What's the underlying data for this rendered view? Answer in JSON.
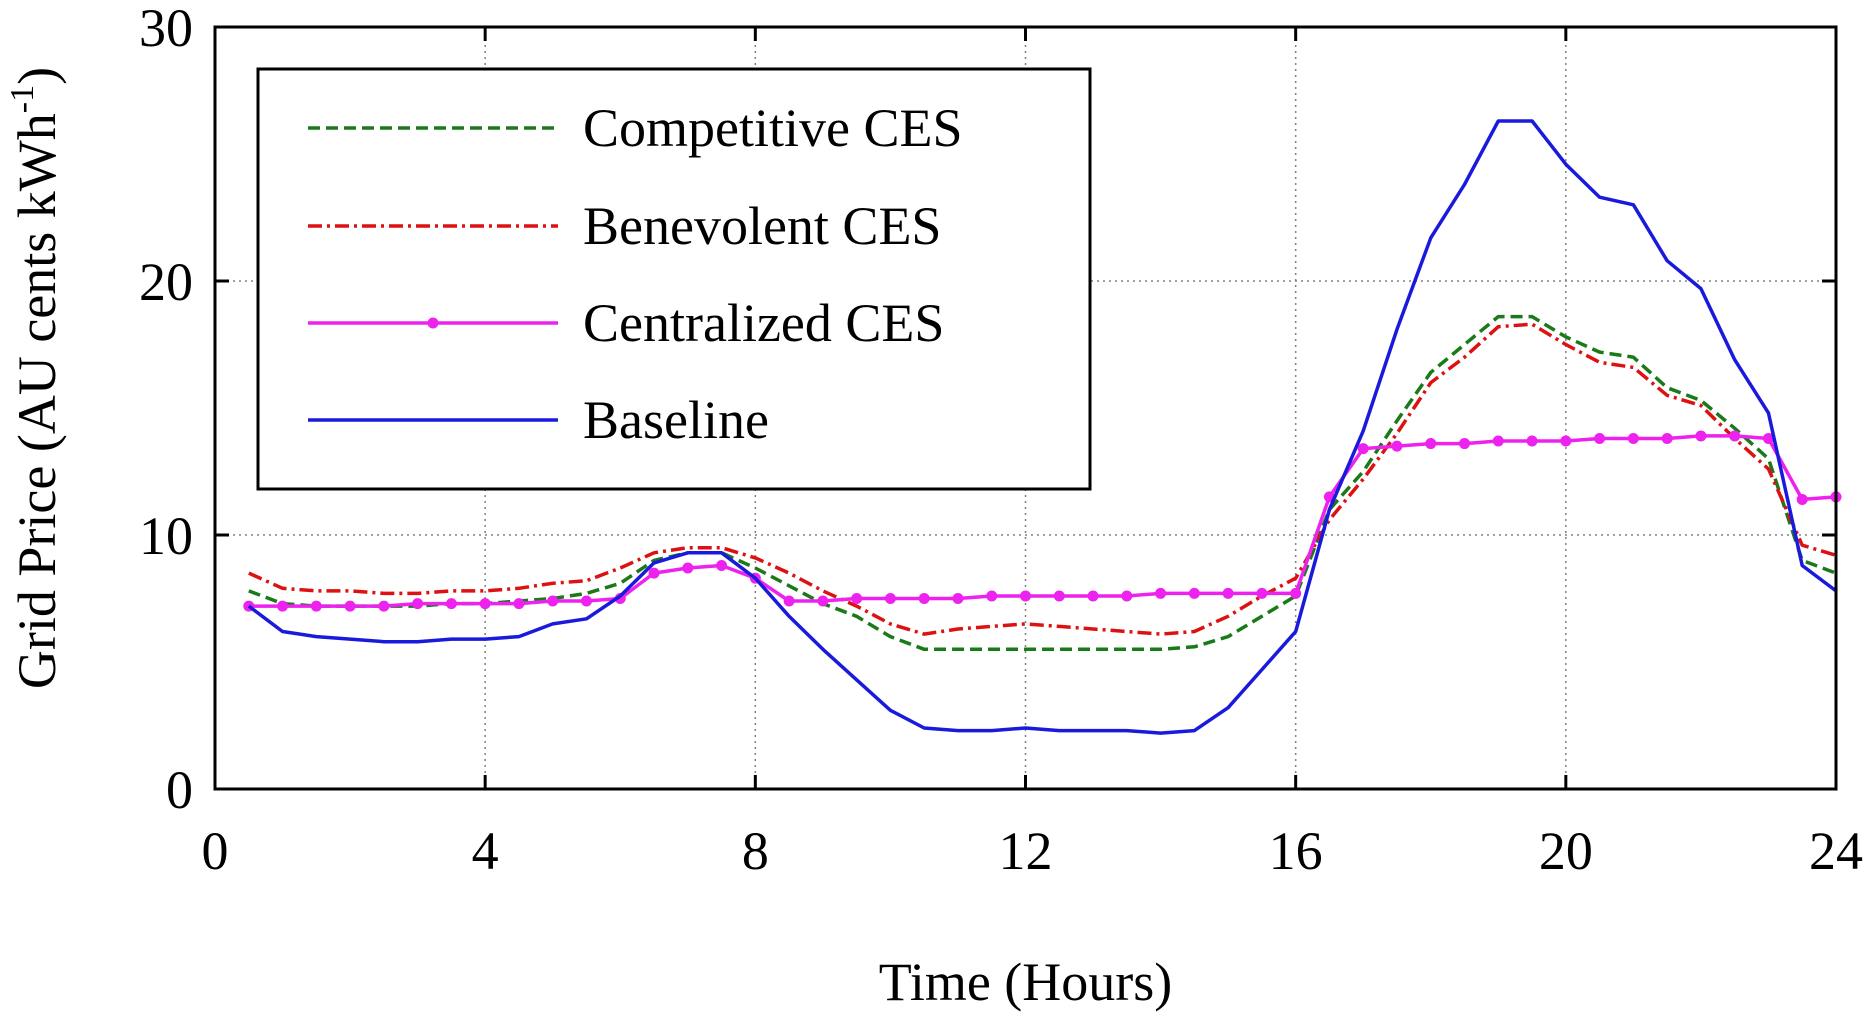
{
  "chart_data": {
    "type": "line",
    "title": "",
    "xlabel": "Time (Hours)",
    "ylabel": "Grid Price (AU cents kWh",
    "ylabel_superscript": "-1",
    "ylabel_suffix": ")",
    "xlim": [
      0,
      24
    ],
    "ylim": [
      0,
      30
    ],
    "xticks": [
      0,
      4,
      8,
      12,
      16,
      20,
      24
    ],
    "yticks": [
      0,
      10,
      20,
      30
    ],
    "xtick_labels": [
      "0",
      "4",
      "8",
      "12",
      "16",
      "20",
      "24"
    ],
    "ytick_labels": [
      "0",
      "10",
      "20",
      "30"
    ],
    "grid": true,
    "legend_position": "top-left",
    "x": [
      0.5,
      1,
      1.5,
      2,
      2.5,
      3,
      3.5,
      4,
      4.5,
      5,
      5.5,
      6,
      6.5,
      7,
      7.5,
      8,
      8.5,
      9,
      9.5,
      10,
      10.5,
      11,
      11.5,
      12,
      12.5,
      13,
      13.5,
      14,
      14.5,
      15,
      15.5,
      16,
      16.5,
      17,
      17.5,
      18,
      18.5,
      19,
      19.5,
      20,
      20.5,
      21,
      21.5,
      22,
      22.5,
      23,
      23.5,
      24
    ],
    "series": [
      {
        "name": "Competitive CES",
        "color": "#1a7a1a",
        "style": "dashed",
        "values": [
          7.8,
          7.3,
          7.2,
          7.2,
          7.2,
          7.2,
          7.3,
          7.3,
          7.4,
          7.5,
          7.7,
          8.1,
          9.0,
          9.3,
          9.3,
          8.7,
          8.0,
          7.3,
          6.8,
          6.0,
          5.5,
          5.5,
          5.5,
          5.5,
          5.5,
          5.5,
          5.5,
          5.5,
          5.6,
          6.0,
          6.8,
          7.6,
          11.0,
          12.5,
          14.5,
          16.4,
          17.5,
          18.6,
          18.6,
          17.8,
          17.2,
          17.0,
          15.8,
          15.3,
          14.2,
          13.0,
          9.0,
          8.5
        ]
      },
      {
        "name": "Benevolent CES",
        "color": "#dd1111",
        "style": "dashdot",
        "values": [
          8.5,
          7.9,
          7.8,
          7.8,
          7.7,
          7.7,
          7.8,
          7.8,
          7.9,
          8.1,
          8.2,
          8.7,
          9.3,
          9.5,
          9.5,
          9.1,
          8.5,
          7.8,
          7.2,
          6.5,
          6.1,
          6.3,
          6.4,
          6.5,
          6.4,
          6.3,
          6.2,
          6.1,
          6.2,
          6.8,
          7.6,
          8.3,
          10.6,
          12.2,
          14.0,
          16.0,
          17.0,
          18.2,
          18.3,
          17.5,
          16.8,
          16.6,
          15.5,
          15.1,
          13.8,
          12.6,
          9.6,
          9.2
        ]
      },
      {
        "name": "Centralized CES",
        "color": "#ee22ee",
        "style": "solid-dot",
        "values": [
          7.2,
          7.2,
          7.2,
          7.2,
          7.2,
          7.3,
          7.3,
          7.3,
          7.3,
          7.4,
          7.4,
          7.5,
          8.5,
          8.7,
          8.8,
          8.3,
          7.4,
          7.4,
          7.5,
          7.5,
          7.5,
          7.5,
          7.6,
          7.6,
          7.6,
          7.6,
          7.6,
          7.7,
          7.7,
          7.7,
          7.7,
          7.7,
          11.5,
          13.4,
          13.5,
          13.6,
          13.6,
          13.7,
          13.7,
          13.7,
          13.8,
          13.8,
          13.8,
          13.9,
          13.9,
          13.8,
          11.4,
          11.5
        ]
      },
      {
        "name": "Baseline",
        "color": "#1a1add",
        "style": "solid",
        "values": [
          7.2,
          6.2,
          6.0,
          5.9,
          5.8,
          5.8,
          5.9,
          5.9,
          6.0,
          6.5,
          6.7,
          7.6,
          8.9,
          9.3,
          9.3,
          8.3,
          6.8,
          5.5,
          4.3,
          3.1,
          2.4,
          2.3,
          2.3,
          2.4,
          2.3,
          2.3,
          2.3,
          2.2,
          2.3,
          3.2,
          4.7,
          6.2,
          11.0,
          14.1,
          18.1,
          21.7,
          23.8,
          26.3,
          26.3,
          24.6,
          23.3,
          23.0,
          20.8,
          19.7,
          16.9,
          14.8,
          8.8,
          7.8
        ]
      }
    ]
  }
}
